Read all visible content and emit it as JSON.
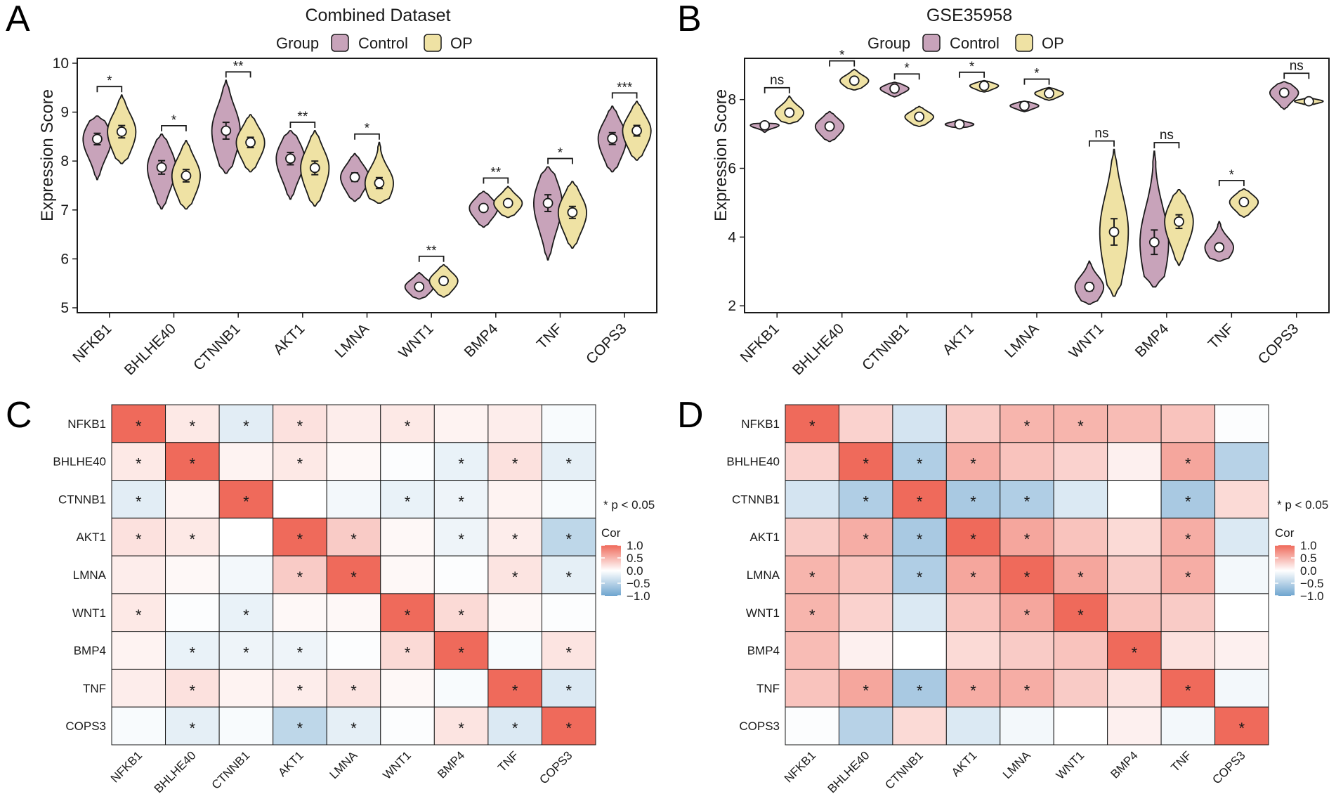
{
  "chart_data": [
    {
      "panel": "A",
      "type": "violin",
      "title": "Combined Dataset",
      "xlabel": "",
      "ylabel": "Expression Score",
      "ylim": [
        4.9,
        10.1
      ],
      "yticks": [
        5,
        6,
        7,
        8,
        9,
        10
      ],
      "legend": {
        "title": "Group",
        "position": "top",
        "entries": [
          "Control",
          "OP"
        ]
      },
      "series_colors": {
        "Control": "#c8a3ba",
        "OP": "#efe2a4"
      },
      "categories": [
        "NFKB1",
        "BHLHE40",
        "CTNNB1",
        "AKT1",
        "LMNA",
        "WNT1",
        "BMP4",
        "TNF",
        "COPS3"
      ],
      "series": [
        {
          "name": "Control",
          "median": [
            8.45,
            7.87,
            8.62,
            8.05,
            7.67,
            5.43,
            7.04,
            7.14,
            8.46
          ],
          "min": [
            7.62,
            7.02,
            7.75,
            7.22,
            7.18,
            5.18,
            6.65,
            5.98,
            7.78
          ],
          "max": [
            8.92,
            8.55,
            9.65,
            8.62,
            8.15,
            5.72,
            7.38,
            7.88,
            9.12
          ]
        },
        {
          "name": "OP",
          "median": [
            8.6,
            7.7,
            8.38,
            7.86,
            7.55,
            5.55,
            7.14,
            6.95,
            8.62
          ],
          "min": [
            7.95,
            7.02,
            7.78,
            7.08,
            7.14,
            5.22,
            6.85,
            6.22,
            8.02
          ],
          "max": [
            9.35,
            8.42,
            8.95,
            8.62,
            8.38,
            5.88,
            7.48,
            7.58,
            9.22
          ]
        }
      ],
      "significance": [
        "*",
        "*",
        "**",
        "**",
        "*",
        "**",
        "**",
        "*",
        "***"
      ]
    },
    {
      "panel": "B",
      "type": "violin",
      "title": "GSE35958",
      "xlabel": "",
      "ylabel": "Expression Score",
      "ylim": [
        1.8,
        9.2
      ],
      "yticks": [
        2,
        4,
        6,
        8
      ],
      "legend": {
        "title": "Group",
        "position": "top",
        "entries": [
          "Control",
          "OP"
        ]
      },
      "series_colors": {
        "Control": "#c8a3ba",
        "OP": "#efe2a4"
      },
      "categories": [
        "NFKB1",
        "BHLHE40",
        "CTNNB1",
        "AKT1",
        "LMNA",
        "WNT1",
        "BMP4",
        "TNF",
        "COPS3"
      ],
      "series": [
        {
          "name": "Control",
          "median": [
            7.25,
            7.22,
            8.32,
            7.28,
            7.82,
            2.55,
            3.85,
            3.7,
            8.2
          ],
          "min": [
            7.05,
            6.78,
            8.08,
            7.18,
            7.65,
            2.05,
            2.55,
            3.3,
            7.72
          ],
          "max": [
            7.32,
            7.65,
            8.5,
            7.42,
            7.95,
            3.3,
            6.5,
            4.45,
            8.52
          ]
        },
        {
          "name": "OP",
          "median": [
            7.62,
            8.55,
            7.5,
            8.4,
            8.18,
            4.15,
            4.45,
            5.02,
            7.95
          ],
          "min": [
            7.3,
            8.28,
            7.22,
            8.22,
            7.98,
            2.28,
            3.18,
            4.58,
            7.85
          ],
          "max": [
            8.1,
            8.88,
            7.8,
            8.55,
            8.35,
            6.55,
            5.38,
            5.4,
            8.05
          ]
        }
      ],
      "significance": [
        "ns",
        "*",
        "*",
        "*",
        "*",
        "ns",
        "ns",
        "*",
        "ns"
      ]
    },
    {
      "panel": "C",
      "type": "heatmap",
      "rows": [
        "NFKB1",
        "BHLHE40",
        "CTNNB1",
        "AKT1",
        "LMNA",
        "WNT1",
        "BMP4",
        "TNF",
        "COPS3"
      ],
      "cols": [
        "NFKB1",
        "BHLHE40",
        "CTNNB1",
        "AKT1",
        "LMNA",
        "WNT1",
        "BMP4",
        "TNF",
        "COPS3"
      ],
      "values": [
        [
          1.0,
          0.15,
          -0.2,
          0.2,
          0.12,
          0.15,
          0.08,
          0.12,
          -0.05
        ],
        [
          0.15,
          1.0,
          0.08,
          0.15,
          0.05,
          -0.02,
          -0.15,
          0.2,
          -0.18
        ],
        [
          -0.2,
          0.08,
          1.0,
          0.0,
          -0.08,
          -0.15,
          -0.12,
          0.08,
          -0.05
        ],
        [
          0.2,
          0.15,
          0.0,
          1.0,
          0.35,
          0.05,
          -0.12,
          0.12,
          -0.45
        ],
        [
          0.12,
          0.05,
          -0.08,
          0.35,
          1.0,
          0.05,
          -0.02,
          0.18,
          -0.18
        ],
        [
          0.15,
          -0.02,
          -0.15,
          0.05,
          0.05,
          1.0,
          0.25,
          0.05,
          -0.02
        ],
        [
          0.08,
          -0.15,
          -0.12,
          -0.12,
          -0.02,
          0.25,
          1.0,
          -0.05,
          0.18
        ],
        [
          0.12,
          0.2,
          0.08,
          0.12,
          0.18,
          0.05,
          -0.05,
          1.0,
          -0.25
        ],
        [
          -0.05,
          -0.18,
          -0.05,
          -0.45,
          -0.18,
          -0.02,
          0.18,
          -0.25,
          1.0
        ]
      ],
      "significant": [
        [
          1,
          1,
          1,
          1,
          0,
          1,
          0,
          0,
          0
        ],
        [
          1,
          1,
          0,
          1,
          0,
          0,
          1,
          1,
          1
        ],
        [
          1,
          0,
          1,
          0,
          0,
          1,
          1,
          0,
          0
        ],
        [
          1,
          1,
          0,
          1,
          1,
          0,
          1,
          1,
          1
        ],
        [
          0,
          0,
          0,
          1,
          1,
          0,
          0,
          1,
          1
        ],
        [
          1,
          0,
          1,
          0,
          0,
          1,
          1,
          0,
          0
        ],
        [
          0,
          1,
          1,
          1,
          0,
          1,
          1,
          0,
          1
        ],
        [
          0,
          1,
          0,
          1,
          1,
          0,
          0,
          1,
          1
        ],
        [
          0,
          1,
          0,
          1,
          1,
          0,
          1,
          1,
          1
        ]
      ],
      "note": "* p < 0.05",
      "colorbar": {
        "title": "Cor",
        "ticks": [
          "1.0",
          "0.5",
          "0.0",
          "−0.5",
          "−1.0"
        ],
        "range": [
          -1,
          1
        ]
      }
    },
    {
      "panel": "D",
      "type": "heatmap",
      "rows": [
        "NFKB1",
        "BHLHE40",
        "CTNNB1",
        "AKT1",
        "LMNA",
        "WNT1",
        "BMP4",
        "TNF",
        "COPS3"
      ],
      "cols": [
        "NFKB1",
        "BHLHE40",
        "CTNNB1",
        "AKT1",
        "LMNA",
        "WNT1",
        "BMP4",
        "TNF",
        "COPS3"
      ],
      "values": [
        [
          1.0,
          0.3,
          -0.3,
          0.35,
          0.5,
          0.5,
          0.45,
          0.4,
          -0.02
        ],
        [
          0.3,
          1.0,
          -0.55,
          0.55,
          0.4,
          0.3,
          0.1,
          0.6,
          -0.5
        ],
        [
          -0.3,
          -0.55,
          1.0,
          -0.6,
          -0.55,
          -0.25,
          0.0,
          -0.6,
          0.25
        ],
        [
          0.35,
          0.55,
          -0.6,
          1.0,
          0.6,
          0.4,
          0.25,
          0.55,
          -0.25
        ],
        [
          0.5,
          0.4,
          -0.55,
          0.6,
          1.0,
          0.6,
          0.35,
          0.55,
          -0.08
        ],
        [
          0.5,
          0.3,
          -0.25,
          0.4,
          0.6,
          1.0,
          0.4,
          0.35,
          0.0
        ],
        [
          0.45,
          0.1,
          0.0,
          0.25,
          0.35,
          0.4,
          1.0,
          0.2,
          0.1
        ],
        [
          0.4,
          0.6,
          -0.6,
          0.55,
          0.55,
          0.35,
          0.2,
          1.0,
          -0.08
        ],
        [
          -0.02,
          -0.5,
          0.25,
          -0.25,
          -0.08,
          0.0,
          0.1,
          -0.08,
          1.0
        ]
      ],
      "significant": [
        [
          1,
          0,
          0,
          0,
          1,
          1,
          0,
          0,
          0
        ],
        [
          0,
          1,
          1,
          1,
          0,
          0,
          0,
          1,
          0
        ],
        [
          0,
          1,
          1,
          1,
          1,
          0,
          0,
          1,
          0
        ],
        [
          0,
          1,
          1,
          1,
          1,
          0,
          0,
          1,
          0
        ],
        [
          1,
          0,
          1,
          1,
          1,
          1,
          0,
          1,
          0
        ],
        [
          1,
          0,
          0,
          0,
          1,
          1,
          0,
          0,
          0
        ],
        [
          0,
          0,
          0,
          0,
          0,
          0,
          1,
          0,
          0
        ],
        [
          0,
          1,
          1,
          1,
          1,
          0,
          0,
          1,
          0
        ],
        [
          0,
          0,
          0,
          0,
          0,
          0,
          0,
          0,
          1
        ]
      ],
      "note": "* p < 0.05",
      "colorbar": {
        "title": "Cor",
        "ticks": [
          "1.0",
          "0.5",
          "0.0",
          "−0.5",
          "−1.0"
        ],
        "range": [
          -1,
          1
        ]
      }
    }
  ]
}
